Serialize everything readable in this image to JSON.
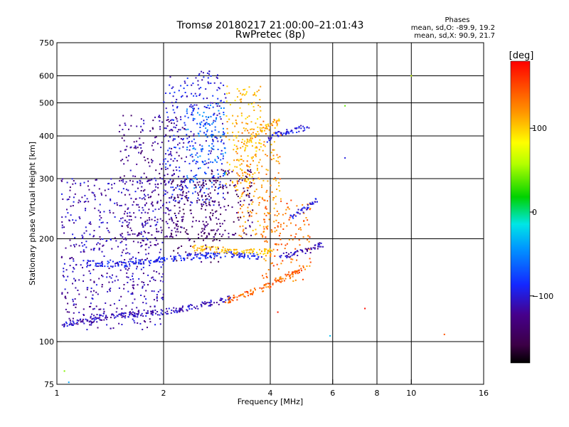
{
  "chart_data": {
    "type": "scatter",
    "title": "Tromsø 20180217 21:00:00–21:01:43",
    "subtitle": "RwPretec (8p)",
    "xlabel": "Frequency [MHz]",
    "ylabel": "Stationary phase Virtual Height [km]",
    "x_scale": "log",
    "y_scale": "log",
    "xlim": [
      1,
      16
    ],
    "ylim": [
      75,
      750
    ],
    "x_ticks": [
      1,
      2,
      4,
      6,
      8,
      10,
      16
    ],
    "x_tick_labels": [
      "1",
      "2",
      "4",
      "6",
      "8",
      "10",
      "16"
    ],
    "x_gridlines": [
      2,
      4,
      6,
      8,
      10
    ],
    "y_ticks": [
      75,
      100,
      200,
      300,
      400,
      500,
      600,
      750
    ],
    "y_tick_labels": [
      "75",
      "100",
      "200",
      "300",
      "400",
      "500",
      "600",
      "750"
    ],
    "y_gridlines": [
      100,
      200,
      300,
      400,
      500,
      600
    ],
    "grid": true,
    "stats": {
      "heading": "Phases",
      "line_o": "mean, sd,O: -89.9, 19.2",
      "line_x": "mean, sd,X:  90.9, 21.7"
    },
    "colorbar": {
      "label": "[deg]",
      "range": [
        -180,
        180
      ],
      "tick_values": [
        100,
        0,
        -100
      ],
      "tick_labels": [
        "100",
        "0",
        "−100"
      ],
      "colormap": "rainbow: black/purple (−180) → blue → cyan → green (0) → yellow → orange → red (+180)"
    },
    "traces": [
      {
        "x": [
          1.03,
          1.2,
          1.4,
          1.6,
          1.8,
          2.0,
          2.2,
          2.5,
          2.8,
          3.1
        ],
        "y": [
          112,
          115,
          118,
          120,
          121,
          122,
          124,
          127,
          130,
          135
        ],
        "phase": -110
      },
      {
        "x": [
          1.2,
          1.5,
          1.8,
          2.1,
          2.5,
          2.9,
          3.3,
          3.8
        ],
        "y": [
          170,
          168,
          172,
          175,
          178,
          180,
          180,
          176
        ],
        "phase": -95
      },
      {
        "x": [
          2.4,
          2.8,
          3.2,
          3.6,
          4.0
        ],
        "y": [
          188,
          186,
          184,
          183,
          184
        ],
        "phase": 110
      },
      {
        "x": [
          3.0,
          3.4,
          3.8,
          4.2,
          4.6,
          5.0
        ],
        "y": [
          132,
          137,
          143,
          150,
          158,
          165
        ],
        "phase": 145
      },
      {
        "x": [
          4.3,
          4.6,
          4.9,
          5.2,
          5.6
        ],
        "y": [
          178,
          180,
          183,
          186,
          193
        ],
        "phase": -115
      },
      {
        "x": [
          3.9,
          4.2,
          4.6,
          5.1
        ],
        "y": [
          390,
          405,
          412,
          425
        ],
        "phase": -100
      },
      {
        "x": [
          4.6,
          5.0,
          5.4
        ],
        "y": [
          230,
          245,
          260
        ],
        "phase": -100
      },
      {
        "x": [
          3.4,
          3.8,
          4.2
        ],
        "y": [
          380,
          420,
          445
        ],
        "phase": 115
      }
    ],
    "clouds": [
      {
        "x": [
          1.03,
          2.0
        ],
        "y": [
          108,
          300
        ],
        "phase": -115
      },
      {
        "x": [
          1.5,
          2.3
        ],
        "y": [
          200,
          460
        ],
        "phase": -125
      },
      {
        "x": [
          2.0,
          3.0
        ],
        "y": [
          250,
          620
        ],
        "phase": -100
      },
      {
        "x": [
          2.3,
          3.0
        ],
        "y": [
          280,
          500
        ],
        "phase": -60
      },
      {
        "x": [
          2.1,
          2.9
        ],
        "y": [
          170,
          300
        ],
        "phase": -145
      },
      {
        "x": [
          3.0,
          3.8
        ],
        "y": [
          280,
          560
        ],
        "phase": 110
      },
      {
        "x": [
          3.2,
          4.3
        ],
        "y": [
          200,
          450
        ],
        "phase": 125
      },
      {
        "x": [
          3.8,
          5.2
        ],
        "y": [
          150,
          260
        ],
        "phase": 140
      },
      {
        "x": [
          2.5,
          3.6
        ],
        "y": [
          200,
          320
        ],
        "phase": -140
      }
    ],
    "isolated_points": [
      {
        "x": 12.4,
        "y": 105,
        "phase": 150
      },
      {
        "x": 10.0,
        "y": 600,
        "phase": 60
      },
      {
        "x": 6.5,
        "y": 345,
        "phase": -100
      },
      {
        "x": 6.5,
        "y": 490,
        "phase": 30
      },
      {
        "x": 7.4,
        "y": 125,
        "phase": 175
      },
      {
        "x": 4.2,
        "y": 122,
        "phase": 170
      },
      {
        "x": 5.9,
        "y": 104,
        "phase": -30
      },
      {
        "x": 1.05,
        "y": 82,
        "phase": 40
      },
      {
        "x": 1.08,
        "y": 76,
        "phase": -40
      }
    ]
  }
}
